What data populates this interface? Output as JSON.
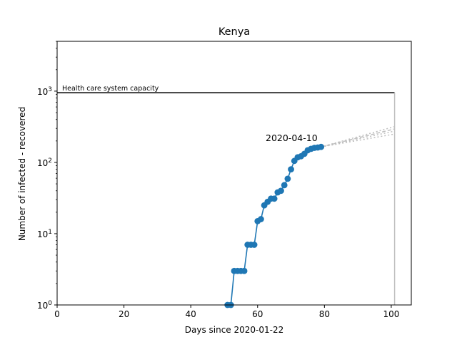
{
  "chart_data": {
    "type": "line",
    "title": "Kenya",
    "xlabel": "Days since 2020-01-22",
    "ylabel": "Number of infected - recovered",
    "xlim": [
      0,
      106
    ],
    "ylim": [
      1,
      5000
    ],
    "yscale": "log",
    "grid": false,
    "x_ticks": [
      0,
      20,
      40,
      60,
      80,
      100
    ],
    "x_tick_labels": [
      "0",
      "20",
      "40",
      "60",
      "80",
      "100"
    ],
    "y_ticks": [
      1,
      10,
      100,
      1000
    ],
    "y_tick_labels": [
      "10^0",
      "10^1",
      "10^2",
      "10^3"
    ],
    "capacity": {
      "label": "Health care system capacity",
      "value": 950,
      "x_end": 101,
      "color": "#000000",
      "drop_line_color": "#bfbfbf"
    },
    "series": [
      {
        "x": [
          51,
          52,
          53,
          54,
          55,
          56,
          57,
          58,
          59,
          60,
          61,
          62,
          63,
          64,
          65,
          66,
          67,
          68,
          69,
          70,
          71,
          72,
          73,
          74,
          75,
          76,
          77,
          78,
          79
        ],
        "y": [
          1,
          1,
          3,
          3,
          3,
          3,
          7,
          7,
          7,
          15,
          16,
          25,
          28,
          31,
          31,
          38,
          40,
          48,
          59,
          80,
          105,
          118,
          122,
          132,
          148,
          155,
          160,
          162,
          165
        ],
        "color": "#1f77b4",
        "marker": "circle"
      }
    ],
    "projections": [
      {
        "x": [
          79,
          101
        ],
        "y": [
          165,
          318
        ],
        "style": "dotted",
        "color": "#bfbfbf"
      },
      {
        "x": [
          79,
          101
        ],
        "y": [
          165,
          295
        ],
        "style": "dashed",
        "color": "#bfbfbf"
      },
      {
        "x": [
          79,
          101
        ],
        "y": [
          165,
          275
        ],
        "style": "dotted",
        "color": "#bfbfbf"
      },
      {
        "x": [
          79,
          101
        ],
        "y": [
          165,
          250
        ],
        "style": "dotted",
        "color": "#bfbfbf"
      }
    ],
    "annotations": [
      {
        "text": "2020-04-10",
        "x": 79,
        "y": 165
      }
    ],
    "colors": {
      "series": "#1f77b4",
      "projection": "#bfbfbf",
      "axes": "#000000"
    }
  }
}
